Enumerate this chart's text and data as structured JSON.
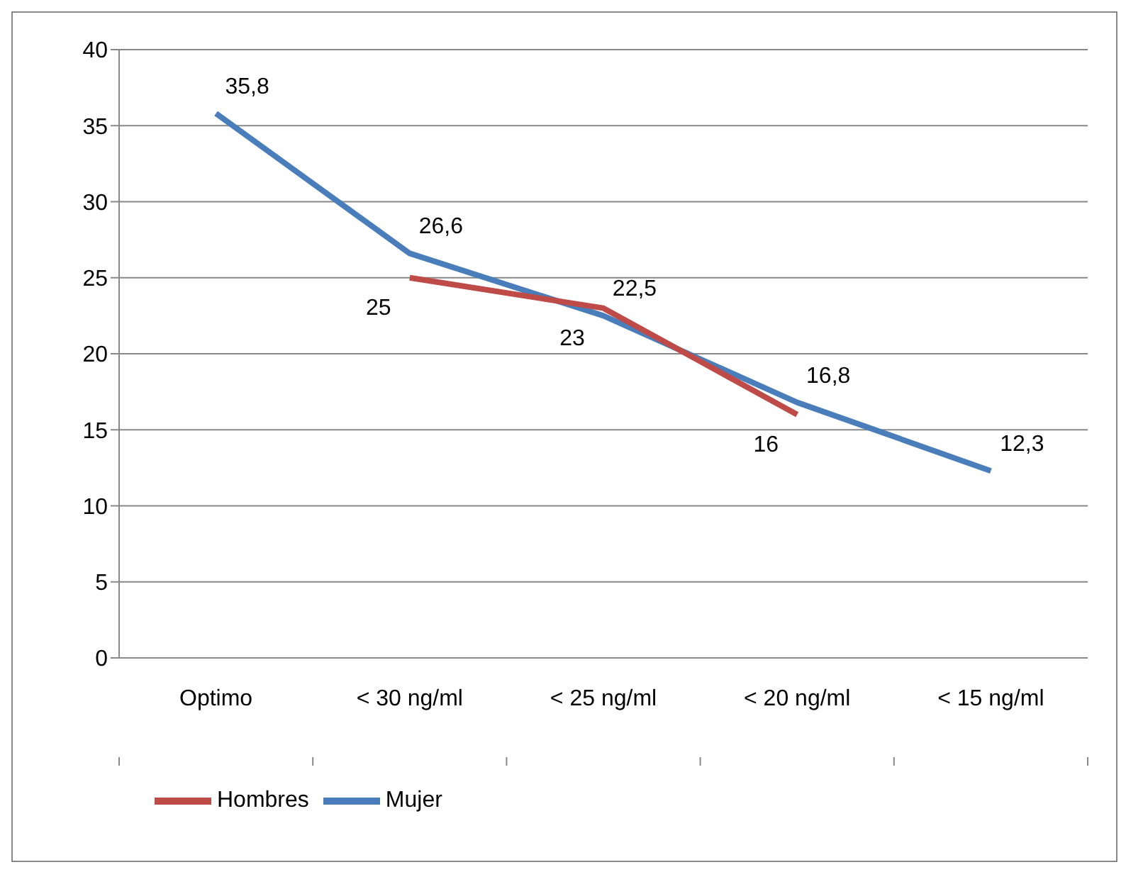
{
  "chart_data": {
    "type": "line",
    "categories": [
      "Optimo",
      "< 30 ng/ml",
      "< 25 ng/ml",
      "< 20 ng/ml",
      "< 15 ng/ml"
    ],
    "series": [
      {
        "name": "Mujer",
        "color": "#4a7ebb",
        "values": [
          35.8,
          26.6,
          22.5,
          16.8,
          12.3
        ],
        "value_labels": [
          "35,8",
          "26,6",
          "22,5",
          "16,8",
          "12,3"
        ]
      },
      {
        "name": "Hombres",
        "color": "#be4b48",
        "values": [
          null,
          25,
          23,
          16,
          null
        ],
        "value_labels": [
          null,
          "25",
          "23",
          "16",
          null
        ]
      }
    ],
    "ylim": [
      0,
      40
    ],
    "yticks": [
      0,
      5,
      10,
      15,
      20,
      25,
      30,
      35,
      40
    ],
    "grid": "y",
    "legend": "bottom",
    "marker": "none",
    "line_style": "solid"
  }
}
